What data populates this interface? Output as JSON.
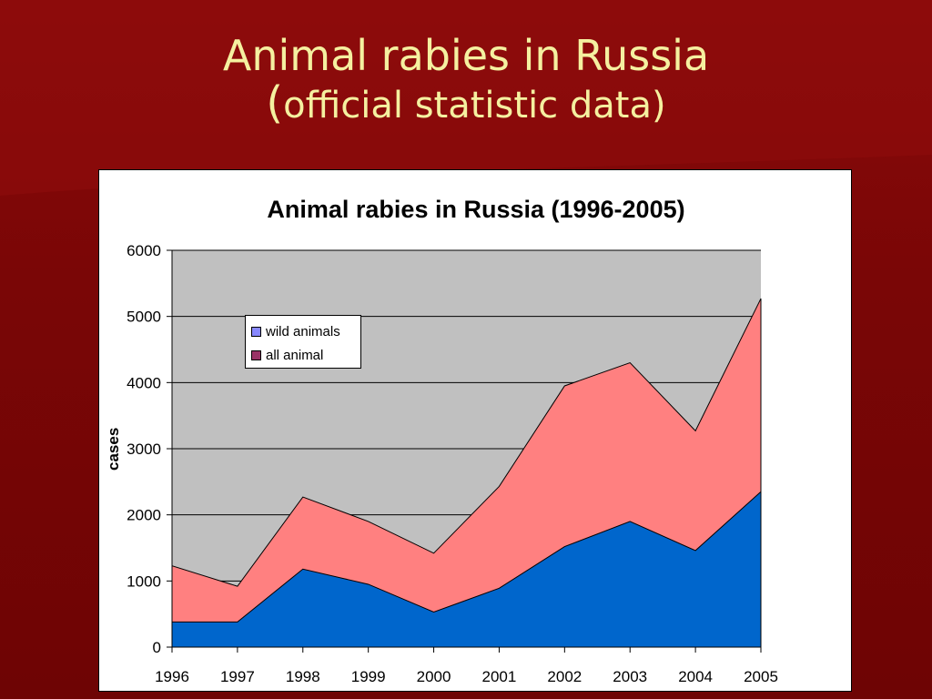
{
  "slide": {
    "title_line1": "Animal rabies in Russia",
    "title_line2_paren": "(",
    "title_line2_rest": "official statistic data)"
  },
  "colors": {
    "background": "#7a0606",
    "title_text": "#f5f0a0",
    "plot_area": "#c0c0c0",
    "wild_animals": "#0066cc",
    "all_animal": "#ff8080"
  },
  "chart_data": {
    "type": "area",
    "title": "Animal rabies in Russia (1996-2005)",
    "xlabel": "",
    "ylabel": "cases",
    "categories": [
      "1996",
      "1997",
      "1998",
      "1999",
      "2000",
      "2001",
      "2002",
      "2003",
      "2004",
      "2005"
    ],
    "ylim": [
      0,
      6000
    ],
    "yticks": [
      0,
      1000,
      2000,
      3000,
      4000,
      5000,
      6000
    ],
    "grid": true,
    "legend_position": "upper-left",
    "series": [
      {
        "name": "wild animals",
        "values": [
          380,
          380,
          1180,
          950,
          530,
          890,
          1520,
          1900,
          1460,
          2350
        ]
      },
      {
        "name": "all animal",
        "values": [
          1230,
          920,
          2270,
          1900,
          1420,
          2430,
          3950,
          4300,
          3270,
          5270
        ]
      }
    ]
  }
}
